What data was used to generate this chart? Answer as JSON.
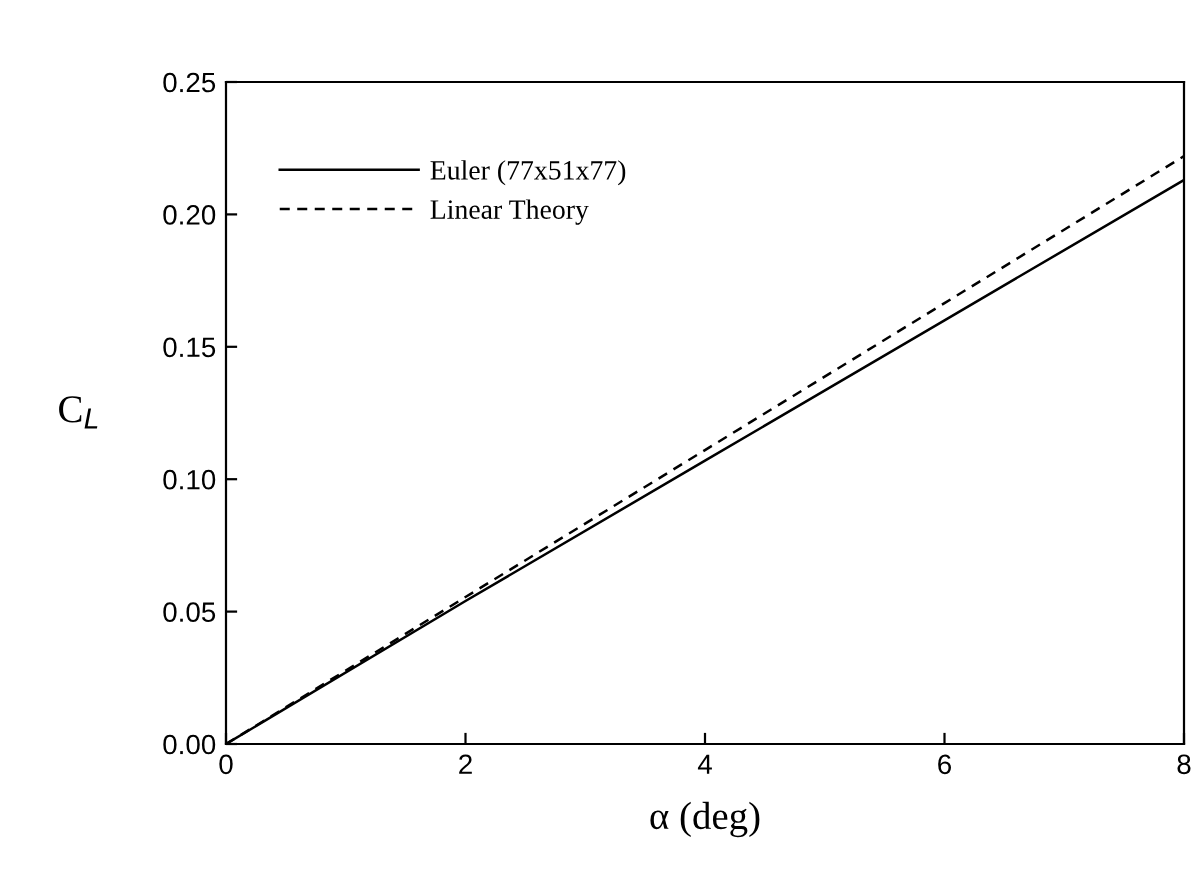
{
  "chart_data": {
    "type": "line",
    "xlabel": "α (deg)",
    "ylabel": "C$_{L}$",
    "x": [
      0,
      2,
      4,
      6,
      8
    ],
    "series": [
      {
        "name": "Euler (77x51x77)",
        "color": "#000000",
        "line_style": "solid",
        "values": [
          0,
          0.054,
          0.107,
          0.16,
          0.213
        ]
      },
      {
        "name": "Linear Theory",
        "color": "#000000",
        "line_style": "dashed",
        "values": [
          0,
          0.0555,
          0.111,
          0.1665,
          0.222
        ]
      }
    ],
    "xlim": [
      0,
      8
    ],
    "xticks": [
      0,
      2,
      4,
      6,
      8
    ],
    "ylim": [
      0,
      0.25
    ],
    "yticks": [
      {
        "value": 0,
        "label": "0.00"
      },
      {
        "value": 0.05,
        "label": "0.05"
      },
      {
        "value": 0.1,
        "label": "0.10"
      },
      {
        "value": 0.15,
        "label": "0.15"
      },
      {
        "value": 0.2,
        "label": "0.20"
      },
      {
        "value": 0.25,
        "label": "0.25"
      }
    ],
    "legend": "top left",
    "grid": false
  }
}
